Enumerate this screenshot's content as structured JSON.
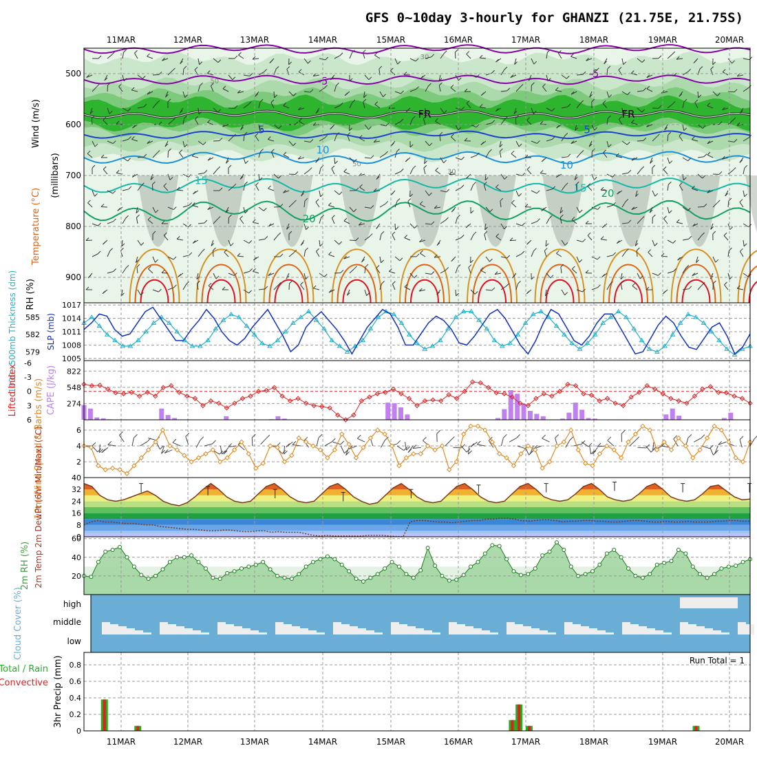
{
  "title": "GFS 0~10day 3-hourly for GHANZI (21.75E, 21.75S)",
  "colors": {
    "grid": "#999999",
    "rh_light": "#c8e6c8",
    "rh_mid": "#78c878",
    "rh_dark": "#20b020",
    "temp_neg": "#8800aa",
    "temp_5": "#1a40d0",
    "temp_10": "#1a90d8",
    "temp_15": "#10b8a8",
    "temp_20": "#10a060",
    "temp_25": "#d89020",
    "temp_30": "#e06010",
    "temp_35": "#e01020",
    "slp": "#1030c0",
    "thick": "#20b0c8",
    "li": "#e02020",
    "cape": "#c080f0",
    "wind": "#e08a20",
    "barb": "#444444",
    "rh2m": "#40a040",
    "cloud_bg": "#6aaed6",
    "cloud": "#eeeeee",
    "rain": "#20b020",
    "conv": "#e02020"
  },
  "chart_data": [
    {
      "name": "upper-air",
      "type": "heatmap",
      "x_dates": [
        "11MAR",
        "12MAR",
        "13MAR",
        "14MAR",
        "15MAR",
        "16MAR",
        "17MAR",
        "18MAR",
        "19MAR",
        "20MAR"
      ],
      "ylabel": "(millibars)",
      "side_labels": [
        "Wind (m/s)",
        "Temperature (°C)",
        "RH (%)"
      ],
      "yticks": [
        500,
        600,
        700,
        800,
        900
      ],
      "contour_labels": [
        {
          "text": "-5",
          "x_day": 3.0,
          "p": 515
        },
        {
          "text": "-5",
          "x_day": 7.0,
          "p": 500
        },
        {
          "text": "FR",
          "x_day": 4.5,
          "p": 580
        },
        {
          "text": "FR",
          "x_day": 7.5,
          "p": 580
        },
        {
          "text": "5",
          "x_day": 2.1,
          "p": 610
        },
        {
          "text": "5",
          "x_day": 6.9,
          "p": 610
        },
        {
          "text": "10",
          "x_day": 3.0,
          "p": 650
        },
        {
          "text": "10",
          "x_day": 6.6,
          "p": 680
        },
        {
          "text": "15",
          "x_day": 1.2,
          "p": 710
        },
        {
          "text": "15",
          "x_day": 6.8,
          "p": 725
        },
        {
          "text": "20",
          "x_day": 2.8,
          "p": 785
        },
        {
          "text": "20",
          "x_day": 7.2,
          "p": 735
        },
        {
          "text": "50",
          "x_day": 1.4,
          "p": 512
        },
        {
          "text": "50",
          "x_day": 3.5,
          "p": 675
        },
        {
          "text": "30",
          "x_day": 4.5,
          "p": 465
        },
        {
          "text": "30",
          "x_day": 4.9,
          "p": 690
        }
      ]
    },
    {
      "name": "slp-thickness",
      "type": "line",
      "ylabel_left": "1000~500mb Thickness (dm)",
      "ylabel_right": "SLP (mb)",
      "thick_ticks": [
        579,
        582,
        585
      ],
      "slp_ticks": [
        1005,
        1008,
        1011,
        1014,
        1017
      ],
      "slp_range": [
        1004.5,
        1017.5
      ],
      "thick_range": [
        577.5,
        587.5
      ],
      "slp": [
        1011.5,
        1013,
        1015,
        1014.5,
        1011.5,
        1010,
        1010.5,
        1013,
        1015.5,
        1016.5,
        1014,
        1011.5,
        1009,
        1009,
        1011.5,
        1013.5,
        1016,
        1014,
        1011,
        1009,
        1008,
        1009.5,
        1012,
        1014,
        1016,
        1013,
        1010,
        1006.5,
        1008,
        1012,
        1014,
        1015.5,
        1013.5,
        1011.5,
        1009,
        1006,
        1009,
        1012,
        1014,
        1016,
        1015,
        1012,
        1008,
        1008,
        1010.5,
        1013,
        1014.5,
        1013.5,
        1011.5,
        1008.5,
        1008,
        1010,
        1012.5,
        1015,
        1016,
        1014,
        1011,
        1008,
        1006,
        1009,
        1013,
        1016,
        1015,
        1012,
        1009,
        1008,
        1010,
        1013,
        1015,
        1015,
        1012,
        1009,
        1006,
        1006.5,
        1009.5,
        1012.5,
        1014.5,
        1013,
        1010,
        1007.5,
        1007,
        1009.5,
        1012,
        1013,
        1010,
        1006,
        1007.5,
        1010.5
      ],
      "thickness": [
        584,
        585,
        583.5,
        582,
        581,
        580,
        580,
        581,
        582.5,
        584,
        585,
        584,
        582.5,
        581,
        580,
        580,
        581,
        583,
        584.5,
        585.5,
        585,
        583.5,
        582,
        580.5,
        580,
        581,
        582.5,
        584,
        585,
        586,
        584.5,
        583,
        581,
        580,
        579,
        580,
        581,
        583,
        585,
        586,
        585.5,
        584,
        582,
        580.5,
        579.5,
        580,
        581,
        583,
        585,
        586,
        586,
        584.5,
        583,
        581,
        580,
        580.5,
        582,
        584,
        585.5,
        586,
        585,
        583.5,
        582,
        580.5,
        579.5,
        580.5,
        582,
        584,
        585,
        586,
        585,
        583,
        581,
        579.5,
        579,
        580,
        582,
        584,
        585.5,
        585,
        584,
        582.5,
        581,
        579.5,
        578.5,
        579.5,
        580
      ],
      "thickness_markers": true
    },
    {
      "name": "lifted-index-cape",
      "type": "bar",
      "ylabel_left": "Lifted Index",
      "ylabel_right": "CAPE (J/kg)",
      "li_ticks": [
        -6,
        -3,
        0,
        3,
        6
      ],
      "li_ticklabels": [
        "-6",
        "-3",
        "0",
        "3",
        "6"
      ],
      "cape_ticks": [
        274,
        548,
        822
      ],
      "li": [
        -1.5,
        -1.2,
        -1.3,
        -0.5,
        0.3,
        0.5,
        0.2,
        1,
        0.2,
        1,
        -0.8,
        -1.2,
        0.2,
        1,
        1.5,
        3,
        2,
        2.5,
        3.5,
        2.5,
        1.5,
        1,
        0,
        -0.2,
        -0.8,
        1,
        2,
        1.5,
        2.5,
        3,
        3.2,
        3.5,
        5,
        6,
        5,
        2,
        1.2,
        0.5,
        0.2,
        -0.5,
        0.5,
        1.5,
        3,
        2,
        1.8,
        2,
        0.7,
        1.5,
        0,
        -2,
        -1.8,
        -0.8,
        0.3,
        0.5,
        1.2,
        2.5,
        3,
        1.5,
        0.5,
        1,
        0,
        -1.5,
        -1.2,
        0.5,
        0.8,
        2,
        1.5,
        2.5,
        3,
        1.2,
        0.2,
        -1.2,
        -0.5,
        0.5,
        1.5,
        2,
        2.5,
        1,
        -0.5,
        -1,
        0.2,
        0.3,
        1,
        1.5,
        2.5
      ],
      "cape": [
        250,
        190,
        40,
        25,
        8,
        0,
        0,
        0,
        0,
        0,
        0,
        0,
        190,
        80,
        30,
        0,
        0,
        0,
        0,
        0,
        0,
        0,
        60,
        0,
        0,
        0,
        0,
        0,
        0,
        10,
        60,
        20,
        0,
        0,
        0,
        0,
        0,
        0,
        0,
        0,
        0,
        0,
        0,
        0,
        0,
        0,
        0,
        290,
        280,
        210,
        90,
        0,
        0,
        0,
        0,
        0,
        0,
        0,
        0,
        0,
        0,
        0,
        0,
        0,
        30,
        180,
        500,
        440,
        270,
        150,
        100,
        60,
        0,
        0,
        20,
        120,
        290,
        170,
        30,
        20,
        0,
        0,
        0,
        0,
        0,
        0,
        0,
        0,
        0,
        0,
        90,
        190,
        70,
        0,
        0,
        0,
        0,
        0,
        0,
        30,
        120,
        0,
        0,
        0
      ],
      "li_range": [
        6,
        -6.5
      ],
      "cape_range": [
        0,
        1000
      ]
    },
    {
      "name": "wind10m",
      "type": "line",
      "ylabel": "10m Wind Speed & Barbs (m/s)",
      "yticks": [
        2,
        4,
        6
      ],
      "yrange": [
        0,
        7.3
      ],
      "speed": [
        4,
        3.8,
        1.5,
        1,
        1.2,
        1,
        0.5,
        1.5,
        2.5,
        3.5,
        4.5,
        6,
        4,
        3.5,
        2.8,
        2,
        2.5,
        3,
        3.5,
        2,
        2.5,
        3.5,
        4.5,
        3,
        1.2,
        1.8,
        4,
        3.8,
        2,
        2.8,
        5,
        4.5,
        4,
        3.5,
        2.5,
        3.5,
        5.5,
        4.2,
        2.5,
        3.8,
        5,
        6,
        5.5,
        4,
        1.5,
        2.5,
        3,
        3,
        4,
        3.5,
        4,
        1,
        2,
        5.5,
        6.5,
        6.5,
        6,
        4.5,
        3,
        2.5,
        1.5,
        3,
        4,
        3.5,
        1.2,
        2,
        4,
        4.5,
        6,
        3.5,
        1.8,
        1.5,
        3,
        4,
        3.5,
        2.5,
        4.5,
        5.5,
        6.5,
        6,
        3.5,
        4.5,
        3.5,
        5,
        4,
        2.5,
        3.5,
        5,
        6.5,
        6,
        4.5,
        2.5,
        2,
        4.5
      ],
      "barb_speed": [
        4,
        4,
        4.2,
        3.8,
        4,
        4.5,
        4,
        4,
        5,
        4.5,
        4,
        3.5,
        4,
        4.2,
        3.8,
        4,
        3.5,
        4,
        3.8,
        4,
        3.5,
        4,
        4.2,
        4,
        3.8,
        4,
        4.5,
        4,
        3.8,
        4,
        4,
        4.5,
        4,
        3.8,
        4,
        4.5,
        4,
        3.8,
        4,
        4,
        4.5,
        4,
        3.8,
        4,
        4.5,
        4,
        3.8,
        4,
        4,
        4.5,
        4,
        3.8,
        4,
        4.5,
        4,
        3.8,
        4,
        4,
        4.5,
        4,
        3.8,
        4,
        4.5,
        4,
        3.8,
        4,
        4,
        4.5,
        4,
        3.8,
        4,
        4.5,
        4,
        3.8,
        4,
        4,
        4.5,
        4,
        3.8,
        4,
        4.5,
        4,
        3.8,
        4
      ]
    },
    {
      "name": "temp2m",
      "type": "area",
      "ylabel": "2m Temp 2m DewPt (6hr Min/Max) (°C)",
      "yticks": [
        0,
        8,
        16,
        24,
        32,
        40
      ],
      "yrange": [
        0,
        40
      ],
      "temp": [
        36,
        34,
        28,
        25,
        24,
        25,
        27,
        29,
        31,
        28,
        24,
        22,
        21,
        23,
        27,
        32,
        36,
        32,
        27,
        24,
        23,
        24,
        29,
        34,
        36,
        32,
        27,
        24,
        23,
        24,
        29,
        34,
        36,
        32,
        27,
        24,
        22,
        23,
        28,
        33,
        36,
        32,
        27,
        24,
        23,
        24,
        29,
        34,
        36,
        32,
        27,
        24,
        23,
        24,
        29,
        34,
        36,
        32,
        27,
        25,
        24,
        25,
        29,
        34,
        36,
        32,
        27,
        25,
        24,
        25,
        29,
        34,
        36,
        32,
        27,
        25,
        24,
        25,
        29,
        34,
        35,
        31,
        27,
        25,
        25.5
      ],
      "dewpt": [
        8,
        10,
        11,
        10,
        10,
        9.5,
        9,
        9,
        8.5,
        8,
        8,
        7,
        6.5,
        6,
        5.5,
        5,
        5,
        4.5,
        4,
        4,
        4.5,
        4.5,
        4,
        3.5,
        3.5,
        4,
        4,
        3,
        3.5,
        3,
        3,
        3,
        2,
        1,
        0.5,
        1,
        0.5,
        0.5,
        0.5,
        0.5,
        0.5,
        1,
        1,
        1,
        0.5,
        0.2,
        0.1,
        10,
        11,
        11,
        10.5,
        10,
        10,
        9.5,
        10,
        10.5,
        11,
        11,
        12,
        12,
        12.5,
        12.5,
        12,
        11,
        10.5,
        11,
        11.5,
        11.5,
        11,
        10,
        10.5,
        10.5,
        11,
        11,
        10.5,
        10.5,
        10,
        10,
        10.5,
        11,
        11,
        10.5,
        10,
        10,
        10.5,
        10,
        10,
        10.5,
        10,
        10,
        10,
        10.5,
        10.5,
        11,
        11,
        10.5,
        10.5
      ],
      "max_markers": [
        36,
        34,
        32,
        30,
        32,
        35,
        36,
        37,
        36,
        36
      ]
    },
    {
      "name": "rh2m",
      "type": "area",
      "ylabel": "2m RH (%)",
      "yticks": [
        20,
        40,
        60
      ],
      "yrange": [
        0,
        62
      ],
      "rh": [
        20,
        19,
        35,
        46,
        48,
        51,
        40,
        30,
        21,
        17,
        20,
        27,
        35,
        40,
        40,
        42,
        35,
        28,
        18,
        17,
        23,
        25,
        28,
        30,
        32,
        35,
        27,
        20,
        18,
        17,
        22,
        30,
        35,
        38,
        41,
        38,
        32,
        25,
        17,
        14,
        18,
        22,
        28,
        35,
        30,
        22,
        18,
        26,
        50,
        31,
        20,
        15,
        16,
        21,
        30,
        35,
        44,
        53,
        52,
        38,
        25,
        21,
        22,
        28,
        42,
        46,
        56,
        48,
        30,
        20,
        22,
        25,
        32,
        44,
        48,
        40,
        28,
        20,
        18,
        22,
        32,
        34,
        36,
        48,
        44,
        30,
        22,
        18,
        22,
        28,
        30,
        31,
        35,
        38
      ]
    },
    {
      "name": "cloud",
      "type": "bar",
      "ylabel": "Cloud Cover (%)",
      "levels": [
        "high",
        "middle",
        "low"
      ]
    },
    {
      "name": "precip",
      "type": "bar",
      "ylabel": "3hr Precip (mm)",
      "legend": [
        "Total / Rain",
        "Convective"
      ],
      "run_total_label": "Run Total = 1",
      "yticks": [
        0,
        0.2,
        0.4,
        0.6,
        0.8
      ],
      "yrange": [
        0,
        0.95
      ],
      "bars": [
        {
          "day": 0.2,
          "total": 0.38,
          "conv": 0.38
        },
        {
          "day": 0.7,
          "total": 0.06,
          "conv": 0.06
        },
        {
          "day": 6.25,
          "total": 0.13,
          "conv": 0.13
        },
        {
          "day": 6.35,
          "total": 0.32,
          "conv": 0.32
        },
        {
          "day": 6.5,
          "total": 0.06,
          "conv": 0.06
        },
        {
          "day": 8.95,
          "total": 0.06,
          "conv": 0.06
        }
      ]
    }
  ]
}
